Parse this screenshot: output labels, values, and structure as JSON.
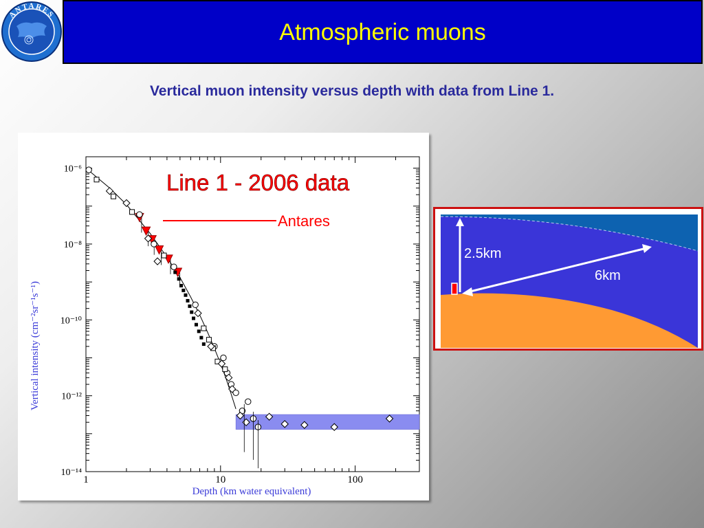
{
  "slide": {
    "title": "Atmospheric muons",
    "subtitle": "Vertical muon intensity versus depth with data from Line 1.",
    "logo_text": "ANTARES"
  },
  "colors": {
    "title_bg": "#0000c8",
    "title_text": "#ffff00",
    "subtitle": "#2a2a9c",
    "antares_marker": "#ff0000",
    "band": "#8a8cf0",
    "sea": "#3a35d8",
    "deep_sea": "#1060a8",
    "seabed": "#ff9a33"
  },
  "chart_data": {
    "type": "scatter",
    "xscale": "log",
    "yscale": "log",
    "xlim": [
      1,
      300
    ],
    "ylim": [
      1e-14,
      2e-06
    ],
    "xlabel": "Depth (km water equivalent)",
    "ylabel": "Vertical intensity (cm⁻²sr⁻¹s⁻¹)",
    "xtick_labels": [
      "1",
      "10",
      "100"
    ],
    "ytick_labels": [
      "10⁻⁶",
      "10⁻⁸",
      "10⁻¹⁰",
      "10⁻¹²",
      "10⁻¹⁴"
    ],
    "annotation": "Line 1 - 2006 data",
    "legend_label": "Antares",
    "series": [
      {
        "name": "Antares",
        "marker": "red-triangle-down",
        "x": [
          2.5,
          2.8,
          3.1,
          3.5,
          4.1,
          4.8
        ],
        "y": [
          5e-08,
          2.2e-08,
          1.3e-08,
          7e-09,
          4e-09,
          1.8e-09
        ]
      },
      {
        "marker": "open-circle",
        "x": [
          1.05,
          2.5,
          3.2,
          4.5,
          6.5,
          9.0,
          10.5,
          11.2,
          12.0,
          13.0,
          14.5,
          16.0,
          17.5,
          19.0
        ],
        "y": [
          9e-07,
          6e-08,
          1e-08,
          2.5e-09,
          2.5e-10,
          2e-11,
          1e-11,
          4e-12,
          2e-12,
          1.2e-12,
          4e-13,
          7e-13,
          2.5e-13,
          1.5e-13
        ]
      },
      {
        "marker": "open-square",
        "x": [
          1.2,
          1.6,
          2.2,
          3.8,
          7.5,
          8.2,
          8.8,
          9.5,
          10.8
        ],
        "y": [
          5e-07,
          1.8e-07,
          7e-08,
          5e-09,
          6e-11,
          3e-11,
          1.8e-11,
          8e-12,
          5e-12
        ]
      },
      {
        "marker": "open-diamond",
        "x": [
          1.5,
          2.0,
          2.9,
          3.4,
          6.8,
          8.5,
          10.2,
          11.5,
          12.2,
          14.0,
          15.5,
          23.0,
          30.0,
          42.0,
          70.0,
          180.0
        ],
        "y": [
          2.5e-07,
          1.2e-07,
          1.4e-08,
          3.5e-09,
          1.5e-10,
          2e-11,
          7e-12,
          3e-12,
          1.5e-12,
          3e-13,
          2e-13,
          2.8e-13,
          1.8e-13,
          1.7e-13,
          1.5e-13,
          2.5e-13
        ]
      },
      {
        "marker": "filled-square",
        "x": [
          4.6,
          4.9,
          5.1,
          5.3,
          5.5,
          5.7,
          5.9,
          6.1,
          6.3,
          6.6,
          6.9,
          7.2,
          7.5
        ],
        "y": [
          1.8e-09,
          1.2e-09,
          8e-10,
          6e-10,
          4.5e-10,
          3.2e-10,
          2.3e-10,
          1.6e-10,
          1.1e-10,
          7.5e-11,
          5e-11,
          3.4e-11,
          2.3e-11
        ]
      }
    ],
    "band": {
      "x_start": 13,
      "x_end": 300,
      "y_low": 1.3e-13,
      "y_high": 3.2e-13
    },
    "curve": {
      "x": [
        1,
        1.5,
        2,
        3,
        4,
        5,
        6,
        7,
        8,
        9,
        10,
        11,
        12,
        13
      ],
      "y": [
        1e-06,
        3e-07,
        1.1e-07,
        1.9e-08,
        4.5e-09,
        1.3e-09,
        4e-10,
        1.35e-10,
        4.8e-11,
        1.8e-11,
        7e-12,
        2.8e-12,
        1.1e-12,
        4.5e-13
      ]
    }
  },
  "inset": {
    "height_label": "2.5km",
    "distance_label": "6km"
  }
}
